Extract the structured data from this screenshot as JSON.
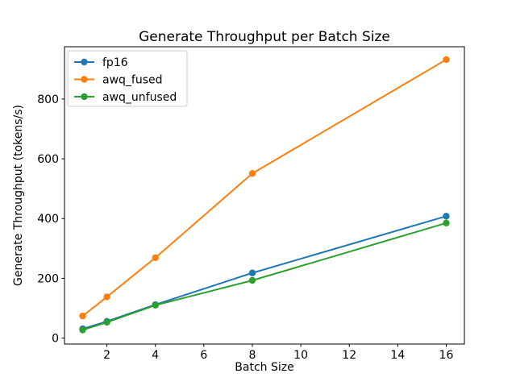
{
  "chart_data": {
    "type": "line",
    "title": "Generate Throughput per Batch Size",
    "xlabel": "Batch Size",
    "ylabel": "Generate Throughput (tokens/s)",
    "x": [
      1,
      2,
      4,
      8,
      16
    ],
    "series": [
      {
        "name": "fp16",
        "color": "#1f77b4",
        "values": [
          31,
          56,
          112,
          218,
          408
        ]
      },
      {
        "name": "awq_fused",
        "color": "#ff7f0e",
        "values": [
          74,
          138,
          269,
          551,
          932
        ]
      },
      {
        "name": "awq_unfused",
        "color": "#2ca02c",
        "values": [
          27,
          53,
          110,
          193,
          385
        ]
      }
    ],
    "xlim": [
      0.25,
      16.75
    ],
    "ylim": [
      -20,
      975
    ],
    "x_ticks": [
      2,
      4,
      6,
      8,
      10,
      12,
      14,
      16
    ],
    "y_ticks": [
      0,
      200,
      400,
      600,
      800
    ],
    "legend_position": "upper left",
    "grid": false,
    "marker": "circle",
    "line_style": "solid",
    "background_color": "#ffffff",
    "spine_color": "#000000",
    "legend_border_color": "#cccccc"
  }
}
